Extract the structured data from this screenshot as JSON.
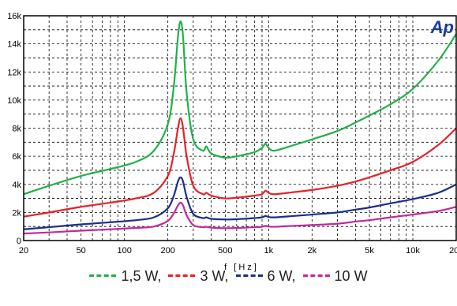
{
  "chart_data": {
    "type": "line",
    "title": "",
    "xlabel": "f  [Hz]",
    "ylabel": "",
    "x_scale": "log",
    "xlim": [
      20,
      20000
    ],
    "ylim": [
      0,
      16000
    ],
    "x_ticks": [
      20,
      50,
      100,
      200,
      500,
      1000,
      2000,
      5000,
      10000,
      20000
    ],
    "x_tick_labels": [
      "20",
      "50",
      "100",
      "200",
      "500",
      "1k",
      "2k",
      "5k",
      "10k",
      "20k"
    ],
    "y_ticks": [
      0,
      2000,
      4000,
      6000,
      8000,
      10000,
      12000,
      14000,
      16000
    ],
    "y_tick_labels": [
      "0",
      "2k",
      "4k",
      "6k",
      "8k",
      "10k",
      "12k",
      "14k",
      "16k"
    ],
    "grid": true,
    "legend_position": "bottom",
    "logo_text": "Ap",
    "x": [
      20,
      30,
      50,
      80,
      120,
      160,
      200,
      220,
      235,
      245,
      255,
      270,
      300,
      350,
      370,
      400,
      500,
      600,
      800,
      900,
      950,
      1000,
      1100,
      1500,
      2000,
      3000,
      4000,
      5000,
      7000,
      10000,
      15000,
      20000
    ],
    "series": [
      {
        "name": "1,5 W",
        "color": "#22b04a",
        "values": [
          3300,
          3900,
          4600,
          5100,
          5600,
          6400,
          8300,
          11000,
          14500,
          15600,
          14500,
          10500,
          7200,
          6400,
          6700,
          6200,
          5900,
          6000,
          6300,
          6600,
          6900,
          6600,
          6400,
          6800,
          7200,
          7800,
          8400,
          8900,
          9700,
          10800,
          12800,
          14700
        ]
      },
      {
        "name": "3 W",
        "color": "#e8202a",
        "values": [
          1700,
          2000,
          2400,
          2700,
          3000,
          3400,
          4600,
          6200,
          8000,
          8700,
          8000,
          6000,
          3900,
          3300,
          3400,
          3200,
          3000,
          3050,
          3200,
          3300,
          3550,
          3400,
          3300,
          3450,
          3600,
          3900,
          4200,
          4500,
          5000,
          5600,
          6800,
          8000
        ]
      },
      {
        "name": "6 W",
        "color": "#1a2f8a",
        "values": [
          800,
          950,
          1150,
          1300,
          1450,
          1650,
          2300,
          3200,
          4200,
          4500,
          4200,
          3100,
          1900,
          1600,
          1650,
          1550,
          1500,
          1520,
          1600,
          1650,
          1750,
          1680,
          1650,
          1750,
          1850,
          2000,
          2200,
          2350,
          2650,
          2950,
          3400,
          4000
        ]
      },
      {
        "name": "10 W",
        "color": "#c4279c",
        "values": [
          500,
          580,
          700,
          800,
          900,
          1000,
          1400,
          1950,
          2500,
          2700,
          2500,
          1800,
          1100,
          950,
          980,
          920,
          880,
          890,
          950,
          980,
          1050,
          1000,
          980,
          1050,
          1100,
          1200,
          1350,
          1450,
          1650,
          1850,
          2100,
          2400
        ]
      }
    ]
  },
  "legend": {
    "items": [
      {
        "label": "1,5 W,",
        "color": "#22b04a"
      },
      {
        "label": "3 W,",
        "color": "#e8202a"
      },
      {
        "label": "6 W,",
        "color": "#1a2f8a"
      },
      {
        "label": "10 W",
        "color": "#c4279c"
      }
    ]
  }
}
